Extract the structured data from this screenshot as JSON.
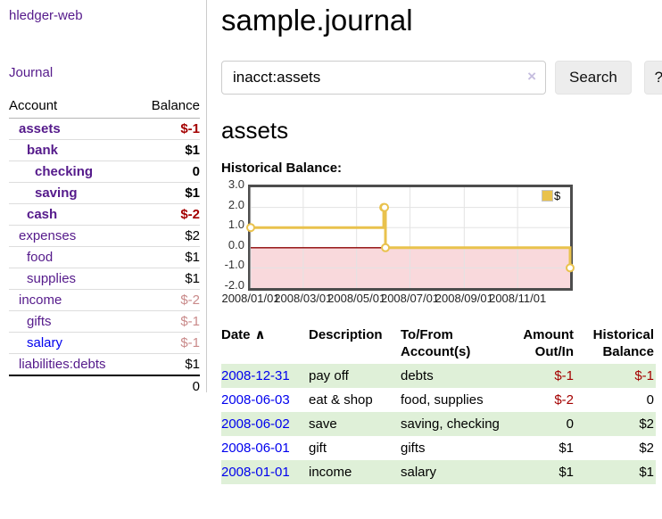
{
  "sidebar": {
    "app_title": "hledger-web",
    "journal_link": "Journal",
    "table": {
      "account_header": "Account",
      "balance_header": "Balance",
      "rows": [
        {
          "name": "assets",
          "level": 1,
          "strong": true,
          "link": "purple",
          "balance": "$-1",
          "tone": "neg-strong"
        },
        {
          "name": "bank",
          "level": 2,
          "strong": true,
          "link": "purple",
          "balance": "$1",
          "tone": "neutral"
        },
        {
          "name": "checking",
          "level": 3,
          "strong": true,
          "link": "purple",
          "balance": "0",
          "tone": "neutral"
        },
        {
          "name": "saving",
          "level": 3,
          "strong": true,
          "link": "purple",
          "balance": "$1",
          "tone": "neutral"
        },
        {
          "name": "cash",
          "level": 2,
          "strong": true,
          "link": "purple",
          "balance": "$-2",
          "tone": "neg-strong"
        },
        {
          "name": "expenses",
          "level": 1,
          "strong": false,
          "link": "purple",
          "balance": "$2",
          "tone": "neutral"
        },
        {
          "name": "food",
          "level": 2,
          "strong": false,
          "link": "purple",
          "balance": "$1",
          "tone": "neutral"
        },
        {
          "name": "supplies",
          "level": 2,
          "strong": false,
          "link": "purple",
          "balance": "$1",
          "tone": "neutral"
        },
        {
          "name": "income",
          "level": 1,
          "strong": false,
          "link": "purple",
          "balance": "$-2",
          "tone": "neg-soft"
        },
        {
          "name": "gifts",
          "level": 2,
          "strong": false,
          "link": "purple",
          "balance": "$-1",
          "tone": "neg-soft"
        },
        {
          "name": "salary",
          "level": 2,
          "strong": false,
          "link": "blue",
          "balance": "$-1",
          "tone": "neg-soft"
        },
        {
          "name": "liabilities:debts",
          "level": 1,
          "strong": false,
          "link": "purple",
          "balance": "$1",
          "tone": "neutral"
        }
      ],
      "total": "0"
    }
  },
  "header": {
    "title": "sample.journal"
  },
  "search": {
    "value": "inacct:assets",
    "clear_icon": "×",
    "button_label": "Search",
    "help_label": "?"
  },
  "main": {
    "account_heading": "assets",
    "chart_label": "Historical Balance:"
  },
  "chart_data": {
    "type": "line",
    "step": true,
    "title": "Historical Balance:",
    "series": [
      {
        "name": "$",
        "color": "#e9c24d",
        "points": [
          [
            "2008-01-01",
            1
          ],
          [
            "2008-06-01",
            2
          ],
          [
            "2008-06-02",
            2
          ],
          [
            "2008-06-03",
            0
          ],
          [
            "2008-12-31",
            -1
          ]
        ]
      }
    ],
    "x_range": [
      "2008-01-01",
      "2008-12-31"
    ],
    "ylim": [
      -2,
      3
    ],
    "y_ticks": [
      3.0,
      2.0,
      1.0,
      0.0,
      -1.0,
      -2.0
    ],
    "x_ticks": [
      "2008/01/01",
      "2008/03/01",
      "2008/05/01",
      "2008/07/01",
      "2008/09/01",
      "2008/11/01"
    ],
    "legend_label": "$",
    "legend_position": "top-right",
    "grid": true,
    "negative_region_color": "#f9d9dc",
    "zero_line_color": "#8b0000"
  },
  "register": {
    "headers": [
      "Date",
      "Description",
      "To/From Account(s)",
      "Amount Out/In",
      "Historical Balance"
    ],
    "sort_icon": "∧",
    "rows": [
      {
        "date": "2008-12-31",
        "description": "pay off",
        "accounts": "debts",
        "amount": "$-1",
        "amount_tone": "neg-strong",
        "balance": "$-1",
        "balance_tone": "neg-strong",
        "shaded": true
      },
      {
        "date": "2008-06-03",
        "description": "eat & shop",
        "accounts": "food, supplies",
        "amount": "$-2",
        "amount_tone": "neg-strong",
        "balance": "0",
        "balance_tone": "neutral",
        "shaded": false
      },
      {
        "date": "2008-06-02",
        "description": "save",
        "accounts": "saving, checking",
        "amount": "0",
        "amount_tone": "neutral",
        "balance": "$2",
        "balance_tone": "neutral",
        "shaded": true
      },
      {
        "date": "2008-06-01",
        "description": "gift",
        "accounts": "gifts",
        "amount": "$1",
        "amount_tone": "neutral",
        "balance": "$2",
        "balance_tone": "neutral",
        "shaded": false
      },
      {
        "date": "2008-01-01",
        "description": "income",
        "accounts": "salary",
        "amount": "$1",
        "amount_tone": "neutral",
        "balance": "$1",
        "balance_tone": "neutral",
        "shaded": true
      }
    ]
  }
}
